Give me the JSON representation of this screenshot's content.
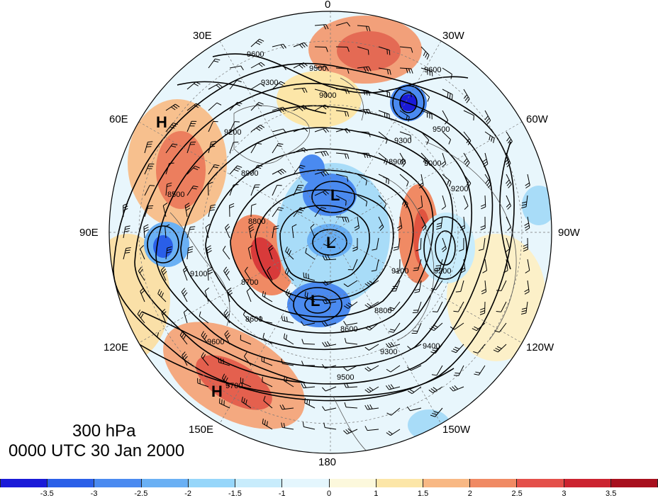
{
  "title": {
    "level": "300 hPa",
    "valid_time": "0000 UTC 30 Jan 2000"
  },
  "longitude_labels": {
    "top": "0",
    "bottom": "180",
    "e30": "30E",
    "w30": "30W",
    "e60": "60E",
    "w60": "60W",
    "e90": "90E",
    "w90": "90W",
    "e120": "120E",
    "w120": "120W",
    "e150": "150E",
    "w150": "150W"
  },
  "pressure_centers": {
    "h1": "H",
    "h2": "H",
    "l1": "L",
    "l2": "L",
    "l3": "L"
  },
  "contour_labels": [
    "9600",
    "9500",
    "9300",
    "9000",
    "9200",
    "8900",
    "9100",
    "8800",
    "8700",
    "8600",
    "9400",
    "9700",
    "8500"
  ],
  "colorbar": {
    "ticks": [
      "-3.5",
      "-3",
      "-2.5",
      "-2",
      "-1.5",
      "-1",
      "0",
      "1",
      "1.5",
      "2",
      "2.5",
      "3",
      "3.5"
    ],
    "colors": [
      "#1a1ad8",
      "#2a5fe8",
      "#4a8af0",
      "#6ab0f4",
      "#96d6fa",
      "#c8ecfc",
      "#e4f6fd",
      "#fcf8dc",
      "#fce6a8",
      "#f8b884",
      "#f08a64",
      "#e4504a",
      "#cc2430",
      "#a8101e"
    ]
  }
}
